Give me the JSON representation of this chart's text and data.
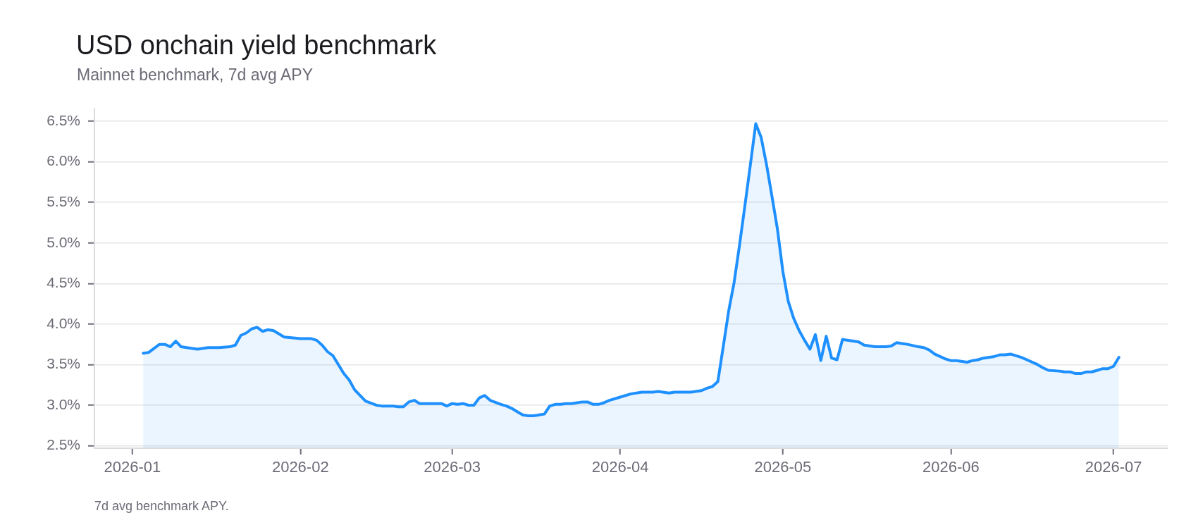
{
  "chart_data": {
    "type": "area",
    "title": "USD onchain yield benchmark",
    "subtitle": "Mainnet benchmark, 7d avg APY",
    "annotations": [
      "7d avg benchmark APY."
    ],
    "x": [
      "2026-01-03",
      "2026-01-04",
      "2026-01-06",
      "2026-01-07",
      "2026-01-08",
      "2026-01-09",
      "2026-01-10",
      "2026-01-11",
      "2026-01-13",
      "2026-01-15",
      "2026-01-17",
      "2026-01-19",
      "2026-01-20",
      "2026-01-21",
      "2026-01-22",
      "2026-01-23",
      "2026-01-24",
      "2026-01-25",
      "2026-01-26",
      "2026-01-27",
      "2026-01-29",
      "2026-02-01",
      "2026-02-03",
      "2026-02-04",
      "2026-02-05",
      "2026-02-06",
      "2026-02-07",
      "2026-02-09",
      "2026-02-10",
      "2026-02-11",
      "2026-02-12",
      "2026-02-13",
      "2026-02-15",
      "2026-02-16",
      "2026-02-18",
      "2026-02-19",
      "2026-02-20",
      "2026-02-21",
      "2026-02-22",
      "2026-02-23",
      "2026-02-27",
      "2026-02-28",
      "2026-03-01",
      "2026-03-02",
      "2026-03-03",
      "2026-03-04",
      "2026-03-05",
      "2026-03-06",
      "2026-03-07",
      "2026-03-08",
      "2026-03-10",
      "2026-03-11",
      "2026-03-12",
      "2026-03-13",
      "2026-03-14",
      "2026-03-15",
      "2026-03-16",
      "2026-03-17",
      "2026-03-18",
      "2026-03-19",
      "2026-03-20",
      "2026-03-21",
      "2026-03-22",
      "2026-03-23",
      "2026-03-25",
      "2026-03-26",
      "2026-03-27",
      "2026-03-28",
      "2026-03-29",
      "2026-03-30",
      "2026-04-01",
      "2026-04-03",
      "2026-04-05",
      "2026-04-07",
      "2026-04-08",
      "2026-04-10",
      "2026-04-11",
      "2026-04-14",
      "2026-04-16",
      "2026-04-17",
      "2026-04-18",
      "2026-04-19",
      "2026-04-20",
      "2026-04-21",
      "2026-04-22",
      "2026-04-23",
      "2026-04-24",
      "2026-04-25",
      "2026-04-26",
      "2026-04-27",
      "2026-04-28",
      "2026-04-29",
      "2026-04-30",
      "2026-05-01",
      "2026-05-02",
      "2026-05-03",
      "2026-05-04",
      "2026-05-05",
      "2026-05-06",
      "2026-05-07",
      "2026-05-08",
      "2026-05-09",
      "2026-05-10",
      "2026-05-11",
      "2026-05-12",
      "2026-05-14",
      "2026-05-15",
      "2026-05-16",
      "2026-05-18",
      "2026-05-20",
      "2026-05-21",
      "2026-05-22",
      "2026-05-23",
      "2026-05-24",
      "2026-05-26",
      "2026-05-27",
      "2026-05-28",
      "2026-05-29",
      "2026-05-30",
      "2026-05-31",
      "2026-06-01",
      "2026-06-02",
      "2026-06-04",
      "2026-06-05",
      "2026-06-06",
      "2026-06-07",
      "2026-06-09",
      "2026-06-10",
      "2026-06-11",
      "2026-06-12",
      "2026-06-14",
      "2026-06-15",
      "2026-06-17",
      "2026-06-18",
      "2026-06-19",
      "2026-06-21",
      "2026-06-22",
      "2026-06-23",
      "2026-06-24",
      "2026-06-25",
      "2026-06-26",
      "2026-06-27",
      "2026-06-28",
      "2026-06-29",
      "2026-06-30",
      "2026-07-01",
      "2026-07-02"
    ],
    "values": [
      3.64,
      3.65,
      3.75,
      3.75,
      3.72,
      3.79,
      3.72,
      3.71,
      3.69,
      3.71,
      3.71,
      3.72,
      3.74,
      3.86,
      3.89,
      3.94,
      3.96,
      3.91,
      3.93,
      3.92,
      3.84,
      3.82,
      3.82,
      3.8,
      3.74,
      3.66,
      3.61,
      3.39,
      3.31,
      3.19,
      3.12,
      3.05,
      3.0,
      2.99,
      2.99,
      2.98,
      2.98,
      3.04,
      3.06,
      3.02,
      3.02,
      2.99,
      3.02,
      3.01,
      3.02,
      3.0,
      3.0,
      3.09,
      3.12,
      3.06,
      3.01,
      2.99,
      2.96,
      2.92,
      2.88,
      2.87,
      2.87,
      2.88,
      2.89,
      2.99,
      3.01,
      3.01,
      3.02,
      3.02,
      3.04,
      3.04,
      3.01,
      3.01,
      3.03,
      3.06,
      3.1,
      3.14,
      3.16,
      3.16,
      3.17,
      3.15,
      3.16,
      3.16,
      3.18,
      3.21,
      3.23,
      3.29,
      3.72,
      4.16,
      4.51,
      4.97,
      5.46,
      5.96,
      6.47,
      6.3,
      5.96,
      5.57,
      5.17,
      4.65,
      4.28,
      4.07,
      3.92,
      3.8,
      3.69,
      3.87,
      3.55,
      3.85,
      3.58,
      3.56,
      3.81,
      3.79,
      3.78,
      3.74,
      3.72,
      3.72,
      3.73,
      3.77,
      3.76,
      3.75,
      3.72,
      3.71,
      3.68,
      3.63,
      3.6,
      3.57,
      3.55,
      3.55,
      3.53,
      3.55,
      3.56,
      3.58,
      3.6,
      3.62,
      3.62,
      3.63,
      3.59,
      3.56,
      3.5,
      3.46,
      3.43,
      3.42,
      3.41,
      3.41,
      3.39,
      3.39,
      3.41,
      3.41,
      3.43,
      3.45,
      3.45,
      3.48,
      3.59
    ],
    "color": "#1e90ff",
    "xlim": [
      "2025-12-25",
      "2026-07-11"
    ],
    "xticks": [
      "2026-01",
      "2026-02",
      "2026-03",
      "2026-04",
      "2026-05",
      "2026-06",
      "2026-07"
    ],
    "ylim": [
      2.47,
      6.66
    ],
    "yticks": [
      {
        "value": 2.5,
        "label": "2.5%"
      },
      {
        "value": 3.0,
        "label": "3.0%"
      },
      {
        "value": 3.5,
        "label": "3.5%"
      },
      {
        "value": 4.0,
        "label": "4.0%"
      },
      {
        "value": 4.5,
        "label": "4.5%"
      },
      {
        "value": 5.0,
        "label": "5.0%"
      },
      {
        "value": 5.5,
        "label": "5.5%"
      },
      {
        "value": 6.0,
        "label": "6.0%"
      },
      {
        "value": 6.5,
        "label": "6.5%"
      }
    ],
    "grid": "y"
  }
}
